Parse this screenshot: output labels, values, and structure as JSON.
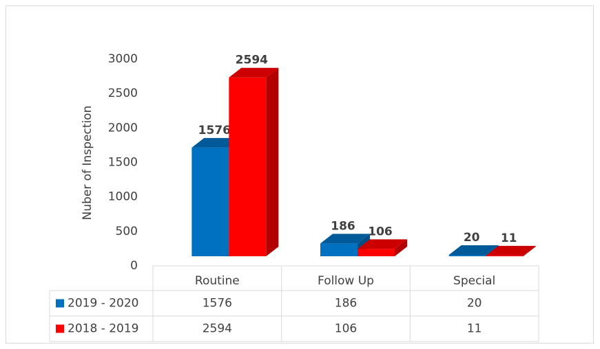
{
  "chart_data": {
    "type": "bar3d",
    "y_label": "Nuber of Inspection",
    "categories": [
      "Routine",
      "Follow Up",
      "Special"
    ],
    "series": [
      {
        "name": "2019 - 2020",
        "color": "#0070c0",
        "values": [
          1576,
          186,
          20
        ]
      },
      {
        "name": "2018 - 2019",
        "color": "#ff0000",
        "values": [
          2594,
          106,
          11
        ]
      }
    ],
    "ylim": [
      0,
      3000
    ],
    "yticks": [
      0,
      500,
      1000,
      1500,
      2000,
      2500,
      3000
    ]
  }
}
